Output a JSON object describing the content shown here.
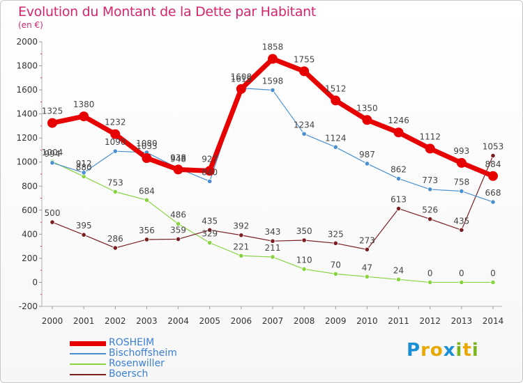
{
  "header": {
    "title": "Evolution du Montant de la Dette par Habitant",
    "subtitle": "(en €)"
  },
  "logo": {
    "text": "Proxiti",
    "letters": [
      "P",
      "r",
      "o",
      "x",
      "i",
      "t",
      "i"
    ],
    "colors": [
      "#1a8fd6",
      "#e8a800",
      "#e8a800",
      "#1a8fd6",
      "#7ab51d",
      "#e8a800",
      "#7ab51d"
    ]
  },
  "chart_data": {
    "type": "line",
    "title": "Evolution du Montant de la Dette par Habitant",
    "subtitle": "(en €)",
    "xlabel": "",
    "ylabel": "",
    "x": [
      "2000",
      "2001",
      "2002",
      "2003",
      "2004",
      "2005",
      "2006",
      "2007",
      "2008",
      "2009",
      "2010",
      "2011",
      "2012",
      "2013",
      "2014"
    ],
    "ylim": [
      -200,
      2000
    ],
    "yticks": [
      -200,
      0,
      200,
      400,
      600,
      800,
      1000,
      1200,
      1400,
      1600,
      1800,
      2000
    ],
    "grid": false,
    "legend_position": "bottom-left",
    "series": [
      {
        "name": "ROSHEIM",
        "color": "#e60000",
        "values": [
          1325,
          1380,
          1232,
          1033,
          938,
          927,
          1608,
          1858,
          1755,
          1512,
          1350,
          1246,
          1112,
          993,
          884
        ]
      },
      {
        "name": "Bischoffsheim",
        "color": "#4a90d0",
        "values": [
          994,
          912,
          1090,
          1080,
          948,
          840,
          1615,
          1598,
          1234,
          1124,
          987,
          862,
          773,
          758,
          668
        ]
      },
      {
        "name": "Rosenwiller",
        "color": "#88d440",
        "values": [
          1004,
          880,
          753,
          684,
          486,
          329,
          221,
          211,
          110,
          70,
          47,
          24,
          0,
          0,
          0
        ]
      },
      {
        "name": "Boersch",
        "color": "#7a1e22",
        "values": [
          500,
          395,
          286,
          356,
          359,
          435,
          392,
          343,
          350,
          325,
          273,
          613,
          526,
          435,
          1053
        ]
      }
    ]
  }
}
